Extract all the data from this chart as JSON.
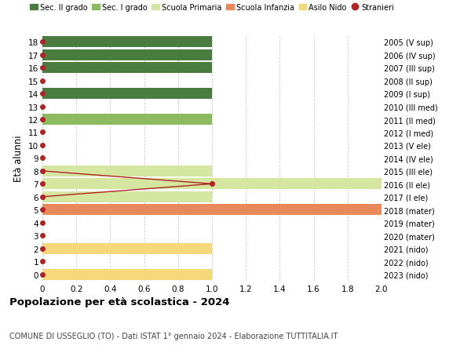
{
  "ages": [
    0,
    1,
    2,
    3,
    4,
    5,
    6,
    7,
    8,
    9,
    10,
    11,
    12,
    13,
    14,
    15,
    16,
    17,
    18
  ],
  "years": [
    "2023 (nido)",
    "2022 (nido)",
    "2021 (nido)",
    "2020 (mater)",
    "2019 (mater)",
    "2018 (mater)",
    "2017 (I ele)",
    "2016 (II ele)",
    "2015 (III ele)",
    "2014 (IV ele)",
    "2013 (V ele)",
    "2012 (I med)",
    "2011 (II med)",
    "2010 (III med)",
    "2009 (I sup)",
    "2008 (II sup)",
    "2007 (III sup)",
    "2006 (IV sup)",
    "2005 (V sup)"
  ],
  "bar_values": [
    1,
    0,
    1,
    0,
    0,
    2,
    1,
    2,
    1,
    0,
    0,
    0,
    1,
    0,
    1,
    0,
    1,
    1,
    1
  ],
  "bar_colors": [
    "#f5d87a",
    "#f5d87a",
    "#f5d87a",
    "#e8895c",
    "#e8895c",
    "#e8895c",
    "#d4e6a0",
    "#d4e6a0",
    "#d4e6a0",
    "#d4e6a0",
    "#d4e6a0",
    "#8cba5e",
    "#8cba5e",
    "#8cba5e",
    "#4a7c3f",
    "#4a7c3f",
    "#4a7c3f",
    "#4a7c3f",
    "#4a7c3f"
  ],
  "stranieri_line_ages": [
    8,
    7,
    6
  ],
  "stranieri_line_values": [
    0,
    1,
    0
  ],
  "color_sec2": "#4a7c3f",
  "color_sec1": "#8cba5e",
  "color_primaria": "#d4e6a0",
  "color_infanzia": "#e8895c",
  "color_nido": "#f5d87a",
  "color_stranieri": "#b22222",
  "ylabel": "Età alunni",
  "title": "Popolazione per età scolastica - 2024",
  "subtitle": "COMUNE DI USSEGLIO (TO) - Dati ISTAT 1° gennaio 2024 - Elaborazione TUTTITALIA.IT",
  "xlim": [
    0,
    2.0
  ],
  "xticks": [
    0,
    0.2,
    0.4,
    0.6,
    0.8,
    1.0,
    1.2,
    1.4,
    1.6,
    1.8,
    2.0
  ],
  "bar_height": 0.85,
  "background_color": "#ffffff",
  "grid_color": "#cccccc"
}
